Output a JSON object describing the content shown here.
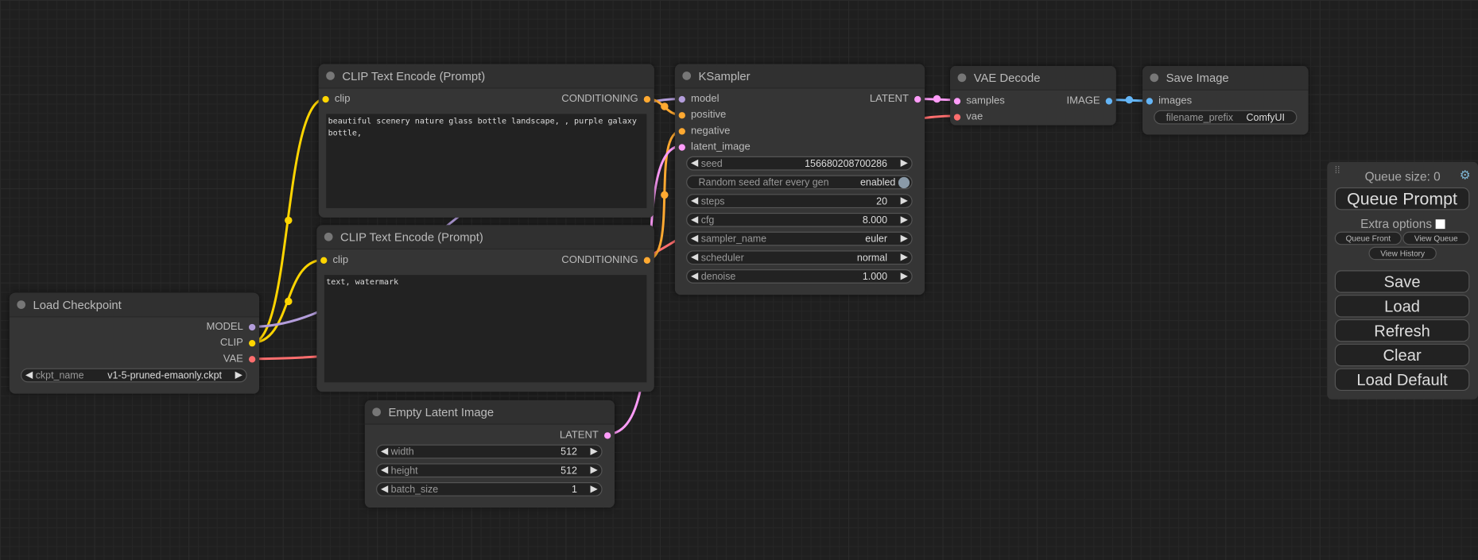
{
  "colors": {
    "MODEL": "#b39ddb",
    "CLIP": "#ffd500",
    "VAE": "#ff6e6e",
    "CONDITIONING": "#ffa931",
    "LATENT": "#ff9cf9",
    "IMAGE": "#64b5f6"
  },
  "load_checkpoint": {
    "title": "Load Checkpoint",
    "outputs": [
      "MODEL",
      "CLIP",
      "VAE"
    ],
    "ckpt_name_label": "ckpt_name",
    "ckpt_name": "v1-5-pruned-emaonly.ckpt"
  },
  "clip_pos": {
    "title": "CLIP Text Encode (Prompt)",
    "input": "clip",
    "output": "CONDITIONING",
    "text": "beautiful scenery nature glass bottle landscape, , purple galaxy bottle,"
  },
  "clip_neg": {
    "title": "CLIP Text Encode (Prompt)",
    "input": "clip",
    "output": "CONDITIONING",
    "text": "text, watermark"
  },
  "empty_latent": {
    "title": "Empty Latent Image",
    "output": "LATENT",
    "widgets": [
      {
        "label": "width",
        "value": "512"
      },
      {
        "label": "height",
        "value": "512"
      },
      {
        "label": "batch_size",
        "value": "1"
      }
    ]
  },
  "ksampler": {
    "title": "KSampler",
    "inputs": [
      "model",
      "positive",
      "negative",
      "latent_image"
    ],
    "output": "LATENT",
    "seed_label": "seed",
    "seed": "156680208700286",
    "random_seed_label": "Random seed after every gen",
    "random_seed_value": "enabled",
    "widgets": [
      {
        "label": "steps",
        "value": "20"
      },
      {
        "label": "cfg",
        "value": "8.000"
      },
      {
        "label": "sampler_name",
        "value": "euler"
      },
      {
        "label": "scheduler",
        "value": "normal"
      },
      {
        "label": "denoise",
        "value": "1.000"
      }
    ]
  },
  "vae_decode": {
    "title": "VAE Decode",
    "inputs": [
      "samples",
      "vae"
    ],
    "output": "IMAGE"
  },
  "save_image": {
    "title": "Save Image",
    "input": "images",
    "prefix_label": "filename_prefix",
    "prefix": "ComfyUI"
  },
  "queue_panel": {
    "queue_size": "Queue size: 0",
    "queue_prompt": "Queue Prompt",
    "extra_options": "Extra options",
    "extra_options_checked": false,
    "queue_front": "Queue Front",
    "view_queue": "View Queue",
    "view_history": "View History",
    "save": "Save",
    "load": "Load",
    "refresh": "Refresh",
    "clear": "Clear",
    "load_default": "Load Default"
  }
}
